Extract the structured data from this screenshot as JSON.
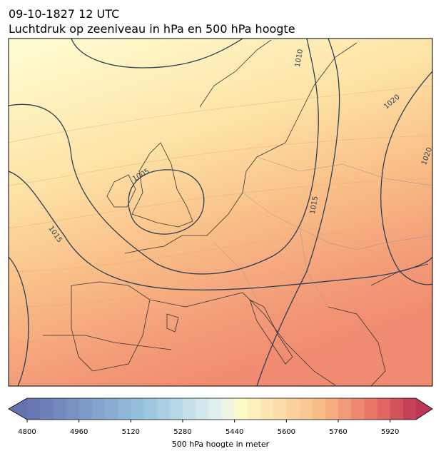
{
  "header": {
    "line1": "09-10-1827 12 UTC",
    "line2": "Luchtdruk op zeeniveau in hPa en 500 hPa hoogte"
  },
  "map": {
    "contour_labels": [
      "1010",
      "1020",
      "1020",
      "1005",
      "1015",
      "1015"
    ]
  },
  "colorbar": {
    "range": [
      4800,
      6000
    ],
    "ticks": [
      4800,
      4960,
      5120,
      5280,
      5440,
      5600,
      5760,
      5920
    ],
    "label": "500 hPa hoogte in meter"
  }
}
